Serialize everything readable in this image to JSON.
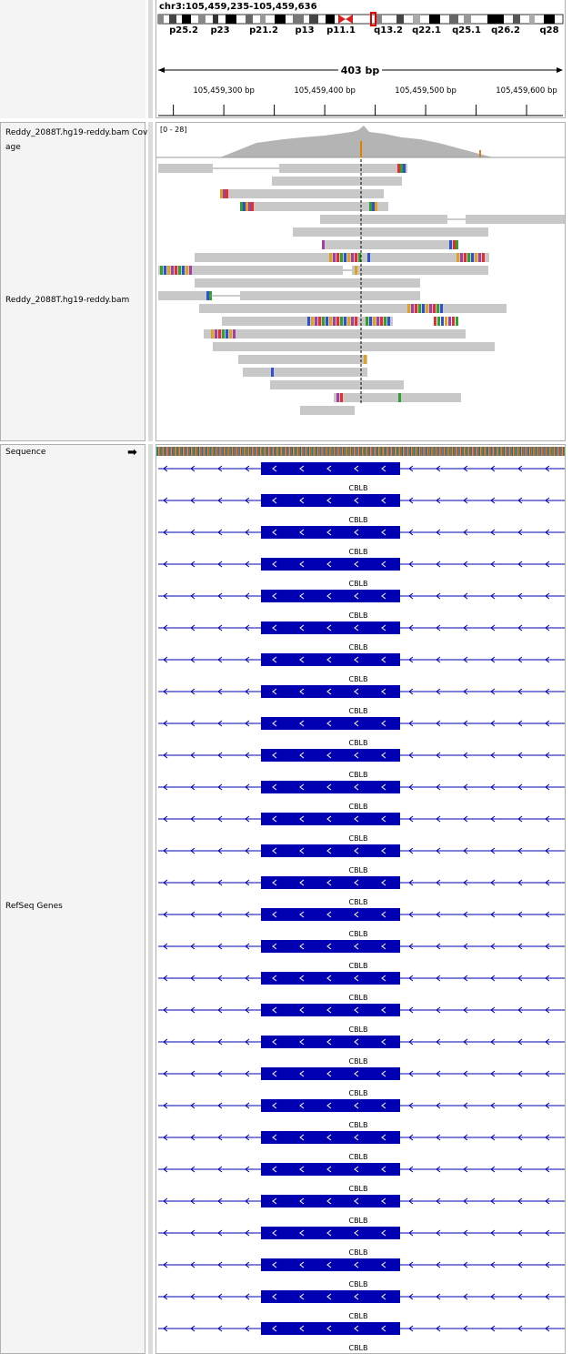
{
  "locus": "chr3:105,459,235-105,459,636",
  "cytobands": [
    "p25.2",
    "p23",
    "p21.2",
    "p13",
    "p11.1",
    "q13.2",
    "q22.1",
    "q25.1",
    "q26.2",
    "q28"
  ],
  "span_label": "403 bp",
  "ruler_ticks": [
    {
      "label": "105,459,300 bp",
      "pos": 105459300
    },
    {
      "label": "105,459,400 bp",
      "pos": 105459400
    },
    {
      "label": "105,459,500 bp",
      "pos": 105459500
    },
    {
      "label": "105,459,600 bp",
      "pos": 105459600
    }
  ],
  "tracks": {
    "coverage_label_line1": "Reddy_2088T.hg19-reddy.bam Cov",
    "coverage_label_line2": "age",
    "coverage_range": "[0 - 28]",
    "alignment_label": "Reddy_2088T.hg19-reddy.bam",
    "sequence_label": "Sequence",
    "refseq_label": "RefSeq Genes",
    "gene_name": "CBLB",
    "gene_row_count": 28
  },
  "colors": {
    "read": "#c8c8c8",
    "coverage": "#b4b4b4",
    "gene": "#0000b2",
    "cyto_centromere": "#d32020"
  }
}
